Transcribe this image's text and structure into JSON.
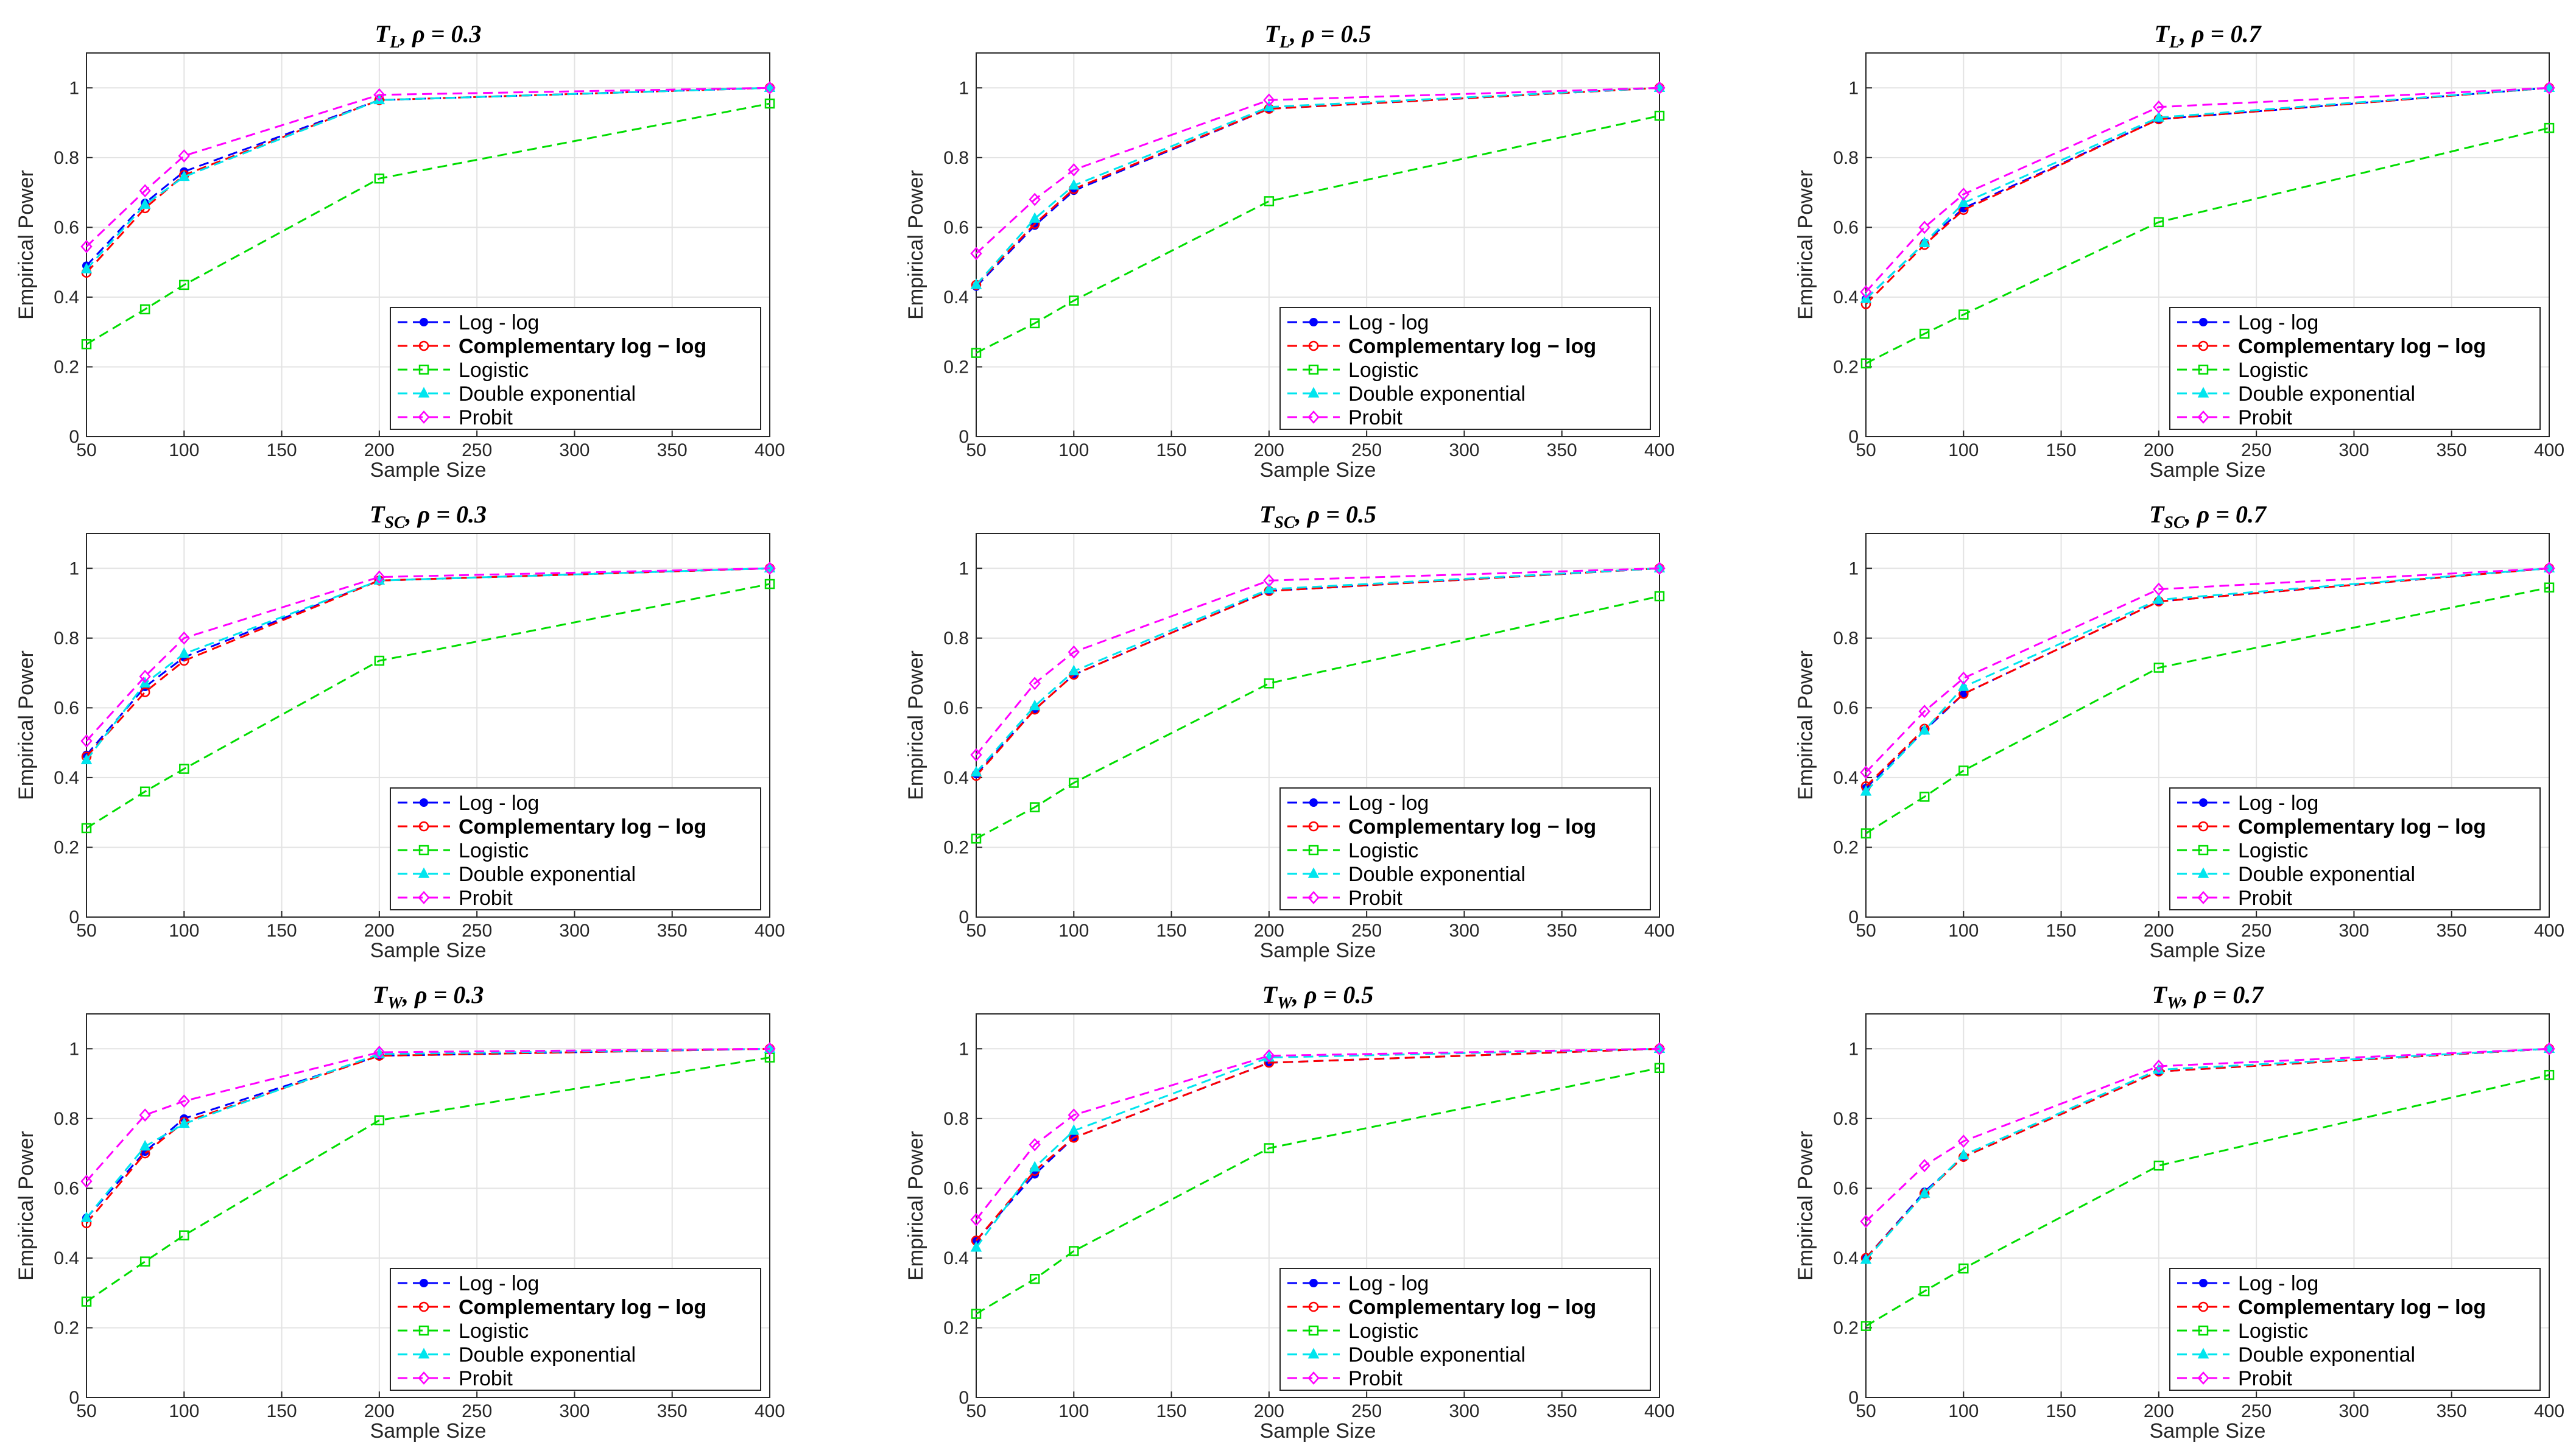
{
  "x_ticks": [
    "50",
    "100",
    "150",
    "200",
    "250",
    "300",
    "350",
    "400"
  ],
  "y_ticks": [
    "0",
    "0.2",
    "0.4",
    "0.6",
    "0.8",
    "1"
  ],
  "legend": {
    "loglog": "Log - log",
    "cloglog": "Complementary log − log",
    "logistic": "Logistic",
    "dexp": "Double exponential",
    "probit": "Probit"
  },
  "colors": {
    "loglog": "#0000ff",
    "cloglog": "#ff0000",
    "logistic": "#00dd00",
    "dexp": "#00e5ee",
    "probit": "#ff00ff"
  },
  "chart_data": [
    {
      "type": "line",
      "title": "T_L, ρ = 0.3",
      "title_base": "T",
      "title_sub": "L",
      "title_rest": ", ρ = 0.3",
      "xlabel": "Sample Size",
      "ylabel": "Empirical Power",
      "xlim": [
        50,
        400
      ],
      "ylim": [
        0,
        1.1
      ],
      "x": [
        50,
        80,
        100,
        200,
        400
      ],
      "grid": true,
      "legend_position": "bottom-right",
      "series": [
        {
          "name": "Log - log",
          "key": "loglog",
          "values": [
            0.49,
            0.67,
            0.76,
            0.965,
            1.0
          ]
        },
        {
          "name": "Complementary log − log",
          "key": "cloglog",
          "values": [
            0.47,
            0.655,
            0.75,
            0.965,
            1.0
          ]
        },
        {
          "name": "Logistic",
          "key": "logistic",
          "values": [
            0.265,
            0.365,
            0.435,
            0.74,
            0.955
          ]
        },
        {
          "name": "Double exponential",
          "key": "dexp",
          "values": [
            0.48,
            0.665,
            0.745,
            0.965,
            1.0
          ]
        },
        {
          "name": "Probit",
          "key": "probit",
          "values": [
            0.545,
            0.705,
            0.805,
            0.98,
            1.0
          ]
        }
      ]
    },
    {
      "type": "line",
      "title": "T_L, ρ = 0.5",
      "title_base": "T",
      "title_sub": "L",
      "title_rest": ", ρ = 0.5",
      "xlabel": "Sample Size",
      "ylabel": "Empirical Power",
      "xlim": [
        50,
        400
      ],
      "ylim": [
        0,
        1.1
      ],
      "x": [
        50,
        80,
        100,
        200,
        400
      ],
      "grid": true,
      "legend_position": "bottom-right",
      "series": [
        {
          "name": "Log - log",
          "key": "loglog",
          "values": [
            0.43,
            0.605,
            0.705,
            0.94,
            1.0
          ]
        },
        {
          "name": "Complementary log − log",
          "key": "cloglog",
          "values": [
            0.435,
            0.61,
            0.71,
            0.94,
            1.0
          ]
        },
        {
          "name": "Logistic",
          "key": "logistic",
          "values": [
            0.24,
            0.325,
            0.39,
            0.675,
            0.92
          ]
        },
        {
          "name": "Double exponential",
          "key": "dexp",
          "values": [
            0.435,
            0.625,
            0.72,
            0.945,
            1.0
          ]
        },
        {
          "name": "Probit",
          "key": "probit",
          "values": [
            0.525,
            0.68,
            0.765,
            0.965,
            1.0
          ]
        }
      ]
    },
    {
      "type": "line",
      "title": "T_L, ρ = 0.7",
      "title_base": "T",
      "title_sub": "L",
      "title_rest": ", ρ = 0.7",
      "xlabel": "Sample Size",
      "ylabel": "Empirical Power",
      "xlim": [
        50,
        400
      ],
      "ylim": [
        0,
        1.1
      ],
      "x": [
        50,
        80,
        100,
        200,
        400
      ],
      "grid": true,
      "legend_position": "bottom-right",
      "series": [
        {
          "name": "Log - log",
          "key": "loglog",
          "values": [
            0.395,
            0.555,
            0.655,
            0.91,
            1.0
          ]
        },
        {
          "name": "Complementary log − log",
          "key": "cloglog",
          "values": [
            0.38,
            0.55,
            0.65,
            0.91,
            1.0
          ]
        },
        {
          "name": "Logistic",
          "key": "logistic",
          "values": [
            0.21,
            0.295,
            0.35,
            0.615,
            0.885
          ]
        },
        {
          "name": "Double exponential",
          "key": "dexp",
          "values": [
            0.395,
            0.555,
            0.67,
            0.915,
            1.0
          ]
        },
        {
          "name": "Probit",
          "key": "probit",
          "values": [
            0.415,
            0.6,
            0.695,
            0.945,
            1.0
          ]
        }
      ]
    },
    {
      "type": "line",
      "title": "T_SC, ρ = 0.3",
      "title_base": "T",
      "title_sub": "SC",
      "title_rest": ", ρ = 0.3",
      "xlabel": "Sample Size",
      "ylabel": "Empirical Power",
      "xlim": [
        50,
        400
      ],
      "ylim": [
        0,
        1.1
      ],
      "x": [
        50,
        80,
        100,
        200,
        400
      ],
      "grid": true,
      "legend_position": "bottom-right",
      "series": [
        {
          "name": "Log - log",
          "key": "loglog",
          "values": [
            0.465,
            0.66,
            0.745,
            0.965,
            1.0
          ]
        },
        {
          "name": "Complementary log − log",
          "key": "cloglog",
          "values": [
            0.46,
            0.645,
            0.735,
            0.965,
            1.0
          ]
        },
        {
          "name": "Logistic",
          "key": "logistic",
          "values": [
            0.255,
            0.36,
            0.425,
            0.735,
            0.955
          ]
        },
        {
          "name": "Double exponential",
          "key": "dexp",
          "values": [
            0.45,
            0.67,
            0.755,
            0.965,
            1.0
          ]
        },
        {
          "name": "Probit",
          "key": "probit",
          "values": [
            0.505,
            0.69,
            0.8,
            0.975,
            1.0
          ]
        }
      ]
    },
    {
      "type": "line",
      "title": "T_SC, ρ = 0.5",
      "title_base": "T",
      "title_sub": "SC",
      "title_rest": ", ρ = 0.5",
      "xlabel": "Sample Size",
      "ylabel": "Empirical Power",
      "xlim": [
        50,
        400
      ],
      "ylim": [
        0,
        1.1
      ],
      "x": [
        50,
        80,
        100,
        200,
        400
      ],
      "grid": true,
      "legend_position": "bottom-right",
      "series": [
        {
          "name": "Log - log",
          "key": "loglog",
          "values": [
            0.41,
            0.595,
            0.695,
            0.935,
            1.0
          ]
        },
        {
          "name": "Complementary log − log",
          "key": "cloglog",
          "values": [
            0.405,
            0.595,
            0.695,
            0.935,
            1.0
          ]
        },
        {
          "name": "Logistic",
          "key": "logistic",
          "values": [
            0.225,
            0.315,
            0.385,
            0.67,
            0.92
          ]
        },
        {
          "name": "Double exponential",
          "key": "dexp",
          "values": [
            0.415,
            0.605,
            0.705,
            0.94,
            1.0
          ]
        },
        {
          "name": "Probit",
          "key": "probit",
          "values": [
            0.465,
            0.67,
            0.76,
            0.965,
            1.0
          ]
        }
      ]
    },
    {
      "type": "line",
      "title": "T_SC, ρ = 0.7",
      "title_base": "T",
      "title_sub": "SC",
      "title_rest": ", ρ = 0.7",
      "xlabel": "Sample Size",
      "ylabel": "Empirical Power",
      "xlim": [
        50,
        400
      ],
      "ylim": [
        0,
        1.1
      ],
      "x": [
        50,
        80,
        100,
        200,
        400
      ],
      "grid": true,
      "legend_position": "bottom-right",
      "series": [
        {
          "name": "Log - log",
          "key": "loglog",
          "values": [
            0.37,
            0.535,
            0.64,
            0.905,
            1.0
          ]
        },
        {
          "name": "Complementary log − log",
          "key": "cloglog",
          "values": [
            0.375,
            0.54,
            0.64,
            0.905,
            1.0
          ]
        },
        {
          "name": "Logistic",
          "key": "logistic",
          "values": [
            0.24,
            0.345,
            0.42,
            0.715,
            0.945
          ]
        },
        {
          "name": "Double exponential",
          "key": "dexp",
          "values": [
            0.36,
            0.535,
            0.66,
            0.91,
            1.0
          ]
        },
        {
          "name": "Probit",
          "key": "probit",
          "values": [
            0.415,
            0.59,
            0.685,
            0.94,
            1.0
          ]
        }
      ]
    },
    {
      "type": "line",
      "title": "T_W, ρ = 0.3",
      "title_base": "T",
      "title_sub": "W",
      "title_rest": ", ρ = 0.3",
      "xlabel": "Sample Size",
      "ylabel": "Empirical Power",
      "xlim": [
        50,
        400
      ],
      "ylim": [
        0,
        1.1
      ],
      "x": [
        50,
        80,
        100,
        200,
        400
      ],
      "grid": true,
      "legend_position": "bottom-right",
      "series": [
        {
          "name": "Log - log",
          "key": "loglog",
          "values": [
            0.515,
            0.705,
            0.8,
            0.98,
            1.0
          ]
        },
        {
          "name": "Complementary log − log",
          "key": "cloglog",
          "values": [
            0.5,
            0.7,
            0.79,
            0.98,
            1.0
          ]
        },
        {
          "name": "Logistic",
          "key": "logistic",
          "values": [
            0.275,
            0.39,
            0.465,
            0.795,
            0.975
          ]
        },
        {
          "name": "Double exponential",
          "key": "dexp",
          "values": [
            0.515,
            0.72,
            0.785,
            0.985,
            1.0
          ]
        },
        {
          "name": "Probit",
          "key": "probit",
          "values": [
            0.62,
            0.81,
            0.85,
            0.99,
            1.0
          ]
        }
      ]
    },
    {
      "type": "line",
      "title": "T_W, ρ = 0.5",
      "title_base": "T",
      "title_sub": "W",
      "title_rest": ", ρ = 0.5",
      "xlabel": "Sample Size",
      "ylabel": "Empirical Power",
      "xlim": [
        50,
        400
      ],
      "ylim": [
        0,
        1.1
      ],
      "x": [
        50,
        80,
        100,
        200,
        400
      ],
      "grid": true,
      "legend_position": "bottom-right",
      "series": [
        {
          "name": "Log - log",
          "key": "loglog",
          "values": [
            0.45,
            0.64,
            0.745,
            0.96,
            1.0
          ]
        },
        {
          "name": "Complementary log − log",
          "key": "cloglog",
          "values": [
            0.45,
            0.65,
            0.745,
            0.96,
            1.0
          ]
        },
        {
          "name": "Logistic",
          "key": "logistic",
          "values": [
            0.24,
            0.34,
            0.42,
            0.715,
            0.945
          ]
        },
        {
          "name": "Double exponential",
          "key": "dexp",
          "values": [
            0.43,
            0.66,
            0.765,
            0.975,
            1.0
          ]
        },
        {
          "name": "Probit",
          "key": "probit",
          "values": [
            0.51,
            0.725,
            0.81,
            0.98,
            1.0
          ]
        }
      ]
    },
    {
      "type": "line",
      "title": "T_W, ρ = 0.7",
      "title_base": "T",
      "title_sub": "W",
      "title_rest": ", ρ = 0.7",
      "xlabel": "Sample Size",
      "ylabel": "Empirical Power",
      "xlim": [
        50,
        400
      ],
      "ylim": [
        0,
        1.1
      ],
      "x": [
        50,
        80,
        100,
        200,
        400
      ],
      "grid": true,
      "legend_position": "bottom-right",
      "series": [
        {
          "name": "Log - log",
          "key": "loglog",
          "values": [
            0.4,
            0.59,
            0.69,
            0.935,
            1.0
          ]
        },
        {
          "name": "Complementary log − log",
          "key": "cloglog",
          "values": [
            0.4,
            0.585,
            0.69,
            0.935,
            1.0
          ]
        },
        {
          "name": "Logistic",
          "key": "logistic",
          "values": [
            0.205,
            0.305,
            0.37,
            0.665,
            0.925
          ]
        },
        {
          "name": "Double exponential",
          "key": "dexp",
          "values": [
            0.395,
            0.585,
            0.695,
            0.94,
            1.0
          ]
        },
        {
          "name": "Probit",
          "key": "probit",
          "values": [
            0.505,
            0.665,
            0.735,
            0.95,
            1.0
          ]
        }
      ]
    }
  ]
}
